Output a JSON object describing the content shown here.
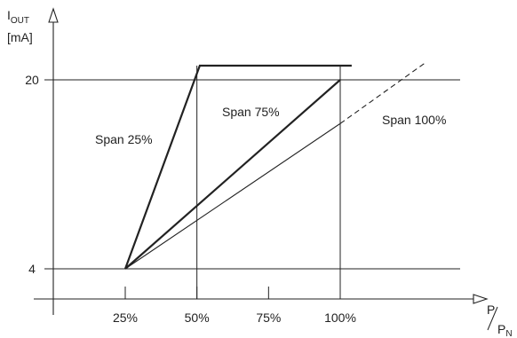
{
  "chart_data": {
    "type": "line",
    "y_axis": {
      "label_main": "I",
      "label_sub": "OUT",
      "unit": "[mA]",
      "ticks": [
        "4",
        "20"
      ],
      "range": [
        0,
        22.5
      ]
    },
    "x_axis": {
      "label_num": "P",
      "label_den": "P",
      "label_den_sub": "N",
      "ticks": [
        "25%",
        "50%",
        "75%",
        "100%"
      ],
      "range": [
        0,
        110
      ]
    },
    "reference_lines": {
      "horizontal": [
        4,
        20
      ],
      "vertical": [
        50,
        100
      ]
    },
    "series": [
      {
        "name": "Span 25%",
        "style": "thick",
        "points": [
          [
            25,
            4
          ],
          [
            51,
            21.2
          ],
          [
            104,
            21.2
          ]
        ]
      },
      {
        "name": "Span 75%",
        "style": "thick",
        "points": [
          [
            25,
            4
          ],
          [
            100,
            20
          ]
        ]
      },
      {
        "name": "Span 100%",
        "style": "thin",
        "points": [
          [
            25,
            4
          ],
          [
            100,
            16.3
          ]
        ]
      },
      {
        "name": "",
        "style": "dashed",
        "points": [
          [
            100,
            16.3
          ],
          [
            130,
            21.5
          ]
        ]
      }
    ],
    "annotations": [
      {
        "text": "Span 25%"
      },
      {
        "text": "Span 75%"
      },
      {
        "text": "Span 100%"
      }
    ]
  }
}
